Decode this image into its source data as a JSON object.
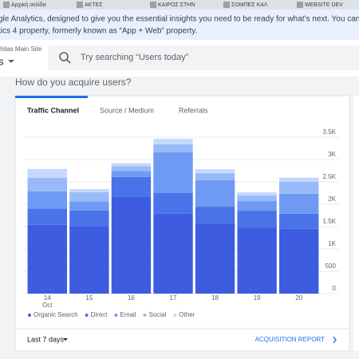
{
  "bookmarks": [
    "Αρχική σελίδα",
    "ΑΚΤΕΣ",
    "ΚΑΙΡΟΣ ΣΤΗΝ",
    "ΣΟΜΠΕΣ ΚΑΛ",
    "WEBSITE DEV"
  ],
  "banner": {
    "line1": "gle Analytics, designed to give you the essential insights you need to be ready for what's next. You can access th",
    "line2": "tics 4 property, formerly known as “App + Web” property."
  },
  "header": {
    "account": "thilas Main Site",
    "property": "s",
    "search_placeholder": "Try searching “Users today”"
  },
  "card": {
    "heading": "How do you acquire users?",
    "tabs": [
      "Traffic Channel",
      "Source / Medium",
      "Referrals"
    ],
    "date_range": "Last 7 days",
    "report_link": "ACQUISITION REPORT"
  },
  "chart_data": {
    "type": "stacked-bar",
    "categories": [
      "14",
      "15",
      "16",
      "17",
      "18",
      "19",
      "20"
    ],
    "month_label": "Oct",
    "series": [
      {
        "name": "Organic Search",
        "color": "#3d5ce0",
        "values": [
          1540,
          1500,
          2160,
          1790,
          1570,
          1480,
          1450
        ]
      },
      {
        "name": "Direct",
        "color": "#4a73ea",
        "values": [
          360,
          360,
          450,
          460,
          375,
          375,
          340
        ]
      },
      {
        "name": "Email",
        "color": "#6e9af3",
        "values": [
          390,
          200,
          130,
          910,
          590,
          215,
          445
        ]
      },
      {
        "name": "Social",
        "color": "#98baf8",
        "values": [
          300,
          210,
          110,
          180,
          160,
          125,
          270
        ]
      },
      {
        "name": "Other",
        "color": "#c6d8fc",
        "values": [
          200,
          70,
          70,
          125,
          90,
          70,
          90
        ]
      }
    ],
    "ylim": [
      0,
      3500
    ],
    "yticks": [
      0,
      500,
      {
        "value": 1000,
        "label": "1K"
      },
      {
        "value": 1500,
        "label": "1.5K"
      },
      {
        "value": 2000,
        "label": "2K"
      },
      {
        "value": 2500,
        "label": "2.5K"
      },
      {
        "value": 3000,
        "label": "3K"
      },
      {
        "value": 3500,
        "label": "3.5K"
      }
    ],
    "grid": true
  }
}
